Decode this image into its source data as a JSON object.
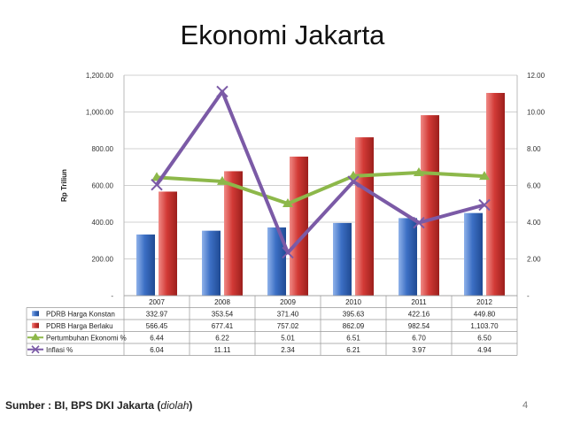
{
  "slide": {
    "title": "Ekonomi Jakarta",
    "source_prefix": "Sumber : BI, BPS DKI Jakarta (",
    "source_italic": "diolah",
    "source_suffix": ")",
    "page_number": "4"
  },
  "colors": {
    "bar_konstan": "#3c6fc4",
    "bar_berlaku": "#d23a36",
    "line_pertumbuhan": "#8db84a",
    "line_inflasi": "#7b5aa6",
    "grid": "#d0d0d0"
  },
  "chart_data": {
    "type": "bar",
    "title": "",
    "ylabel": "Rp Triliun",
    "categories": [
      "2007",
      "2008",
      "2009",
      "2010",
      "2011",
      "2012"
    ],
    "ylim": [
      0,
      1200
    ],
    "y_ticks": [
      "-",
      "200.00",
      "400.00",
      "600.00",
      "800.00",
      "1,000.00",
      "1,200.00"
    ],
    "y2lim": [
      0,
      12
    ],
    "y2_ticks": [
      "-",
      "2.00",
      "4.00",
      "6.00",
      "8.00",
      "10.00",
      "12.00"
    ],
    "grid": true,
    "legend": "data-table",
    "series": [
      {
        "name": "PDRB Harga Konstan",
        "kind": "bar",
        "axis": "left",
        "values": [
          332.97,
          353.54,
          371.4,
          395.63,
          422.16,
          449.8
        ],
        "labels": [
          "332.97",
          "353.54",
          "371.40",
          "395.63",
          "422.16",
          "449.80"
        ]
      },
      {
        "name": "PDRB Harga Berlaku",
        "kind": "bar",
        "axis": "left",
        "values": [
          566.45,
          677.41,
          757.02,
          862.09,
          982.54,
          1103.7
        ],
        "labels": [
          "566.45",
          "677.41",
          "757.02",
          "862.09",
          "982.54",
          "1,103.70"
        ]
      },
      {
        "name": "Pertumbuhan Ekonomi %",
        "kind": "line",
        "axis": "right",
        "values": [
          6.44,
          6.22,
          5.01,
          6.51,
          6.7,
          6.5
        ],
        "labels": [
          "6.44",
          "6.22",
          "5.01",
          "6.51",
          "6.70",
          "6.50"
        ]
      },
      {
        "name": "Inflasi %",
        "kind": "line",
        "axis": "right",
        "values": [
          6.04,
          11.11,
          2.34,
          6.21,
          3.97,
          4.94
        ],
        "labels": [
          "6.04",
          "11.11",
          "2.34",
          "6.21",
          "3.97",
          "4.94"
        ]
      }
    ]
  }
}
